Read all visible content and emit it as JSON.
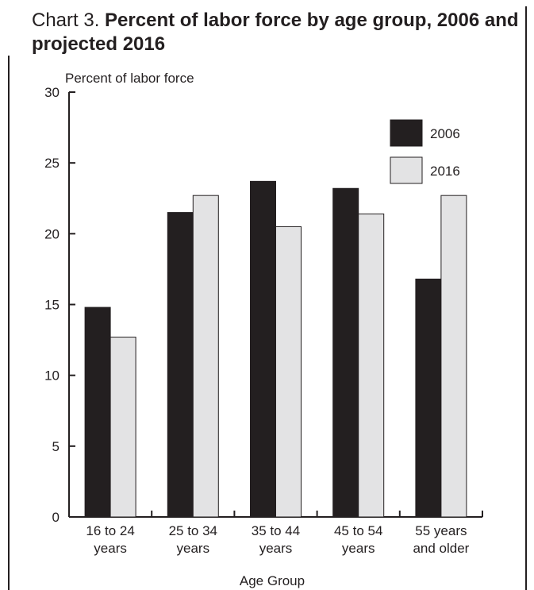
{
  "chart_data": {
    "type": "bar",
    "title_prefix": "Chart 3.",
    "title": "Percent of labor force by age group, 2006 and projected 2016",
    "ylabel": "Percent of labor force",
    "xlabel": "Age Group",
    "ylim": [
      0,
      30
    ],
    "yticks": [
      "0",
      "5",
      "10",
      "15",
      "20",
      "25",
      "30"
    ],
    "categories": [
      [
        "16 to 24",
        "years"
      ],
      [
        "25 to 34",
        "years"
      ],
      [
        "35 to 44",
        "years"
      ],
      [
        "45 to 54",
        "years"
      ],
      [
        "55 years",
        "and older"
      ]
    ],
    "series": [
      {
        "name": "2006",
        "color": "#231f20",
        "values": [
          14.8,
          21.5,
          23.7,
          23.2,
          16.8
        ]
      },
      {
        "name": "2016",
        "color": "#e3e3e4",
        "values": [
          12.7,
          22.7,
          20.5,
          21.4,
          22.7
        ]
      }
    ],
    "legend": "top-right",
    "grid": false
  }
}
